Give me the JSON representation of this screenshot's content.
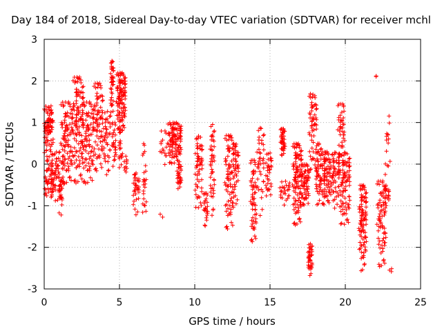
{
  "chart_data": {
    "type": "scatter",
    "title": "Day 184 of 2018, Sidereal Day-to-day VTEC variation (SDTVAR) for receiver mchl",
    "xlabel": "GPS time / hours",
    "ylabel": "SDTVAR / TECUs",
    "xlim": [
      0,
      25
    ],
    "ylim": [
      -3,
      3
    ],
    "xticks": [
      "0",
      "5",
      "10",
      "15",
      "20",
      "25"
    ],
    "yticks": [
      "-3",
      "-2",
      "-1",
      "0",
      "1",
      "2",
      "3"
    ],
    "grid": true,
    "marker": "plus",
    "series_color": "#ff0000",
    "clusters": [
      {
        "x": [
          0.0,
          0.6
        ],
        "y": [
          -0.8,
          1.4
        ],
        "n": 140
      },
      {
        "x": [
          0.5,
          1.3
        ],
        "y": [
          -0.9,
          0.3
        ],
        "n": 60
      },
      {
        "x": [
          0.9,
          1.2
        ],
        "y": [
          -1.3,
          -0.5
        ],
        "n": 15
      },
      {
        "x": [
          1.1,
          1.9
        ],
        "y": [
          -0.5,
          1.5
        ],
        "n": 100
      },
      {
        "x": [
          1.9,
          2.6
        ],
        "y": [
          -0.5,
          2.1
        ],
        "n": 120
      },
      {
        "x": [
          2.5,
          3.3
        ],
        "y": [
          -0.5,
          1.5
        ],
        "n": 90
      },
      {
        "x": [
          3.3,
          3.9
        ],
        "y": [
          -0.2,
          1.95
        ],
        "n": 80
      },
      {
        "x": [
          3.9,
          4.4
        ],
        "y": [
          -0.3,
          1.3
        ],
        "n": 40
      },
      {
        "x": [
          4.4,
          4.6
        ],
        "y": [
          1.2,
          2.5
        ],
        "n": 40
      },
      {
        "x": [
          4.5,
          4.8
        ],
        "y": [
          -0.1,
          1.0
        ],
        "n": 25
      },
      {
        "x": [
          4.8,
          5.4
        ],
        "y": [
          0.8,
          2.2
        ],
        "n": 110
      },
      {
        "x": [
          4.9,
          5.2
        ],
        "y": [
          -0.1,
          0.9
        ],
        "n": 20
      },
      {
        "x": [
          5.3,
          5.5
        ],
        "y": [
          -0.3,
          0.2
        ],
        "n": 10
      },
      {
        "x": [
          5.9,
          6.3
        ],
        "y": [
          -1.25,
          -0.2
        ],
        "n": 35
      },
      {
        "x": [
          6.5,
          6.8
        ],
        "y": [
          -1.2,
          0.0
        ],
        "n": 20
      },
      {
        "x": [
          6.5,
          6.7
        ],
        "y": [
          0.2,
          0.55
        ],
        "n": 5
      },
      {
        "x": [
          7.7,
          8.0
        ],
        "y": [
          -1.3,
          -1.2
        ],
        "n": 2
      },
      {
        "x": [
          7.7,
          8.2
        ],
        "y": [
          -0.2,
          0.8
        ],
        "n": 15
      },
      {
        "x": [
          8.2,
          9.1
        ],
        "y": [
          0.0,
          1.0
        ],
        "n": 110
      },
      {
        "x": [
          8.8,
          9.1
        ],
        "y": [
          -0.6,
          0.0
        ],
        "n": 30
      },
      {
        "x": [
          10.0,
          10.5
        ],
        "y": [
          -1.1,
          0.7
        ],
        "n": 60
      },
      {
        "x": [
          10.6,
          10.9
        ],
        "y": [
          -1.5,
          -0.7
        ],
        "n": 25
      },
      {
        "x": [
          11.0,
          11.3
        ],
        "y": [
          -1.3,
          1.0
        ],
        "n": 45
      },
      {
        "x": [
          12.0,
          12.6
        ],
        "y": [
          -1.6,
          0.7
        ],
        "n": 90
      },
      {
        "x": [
          12.6,
          12.9
        ],
        "y": [
          -1.0,
          0.5
        ],
        "n": 35
      },
      {
        "x": [
          13.7,
          14.1
        ],
        "y": [
          -1.9,
          0.1
        ],
        "n": 60
      },
      {
        "x": [
          14.1,
          14.6
        ],
        "y": [
          -1.3,
          0.9
        ],
        "n": 40
      },
      {
        "x": [
          14.7,
          15.1
        ],
        "y": [
          -0.8,
          0.3
        ],
        "n": 35
      },
      {
        "x": [
          15.7,
          16.0
        ],
        "y": [
          0.2,
          0.85
        ],
        "n": 40
      },
      {
        "x": [
          15.6,
          16.3
        ],
        "y": [
          -1.0,
          -0.4
        ],
        "n": 25
      },
      {
        "x": [
          16.5,
          17.1
        ],
        "y": [
          -1.5,
          0.5
        ],
        "n": 120
      },
      {
        "x": [
          17.1,
          17.6
        ],
        "y": [
          -1.0,
          0.0
        ],
        "n": 60
      },
      {
        "x": [
          17.5,
          17.8
        ],
        "y": [
          -2.7,
          -1.9
        ],
        "n": 40
      },
      {
        "x": [
          17.6,
          18.1
        ],
        "y": [
          -0.2,
          1.7
        ],
        "n": 60
      },
      {
        "x": [
          18.0,
          18.4
        ],
        "y": [
          -1.0,
          0.5
        ],
        "n": 50
      },
      {
        "x": [
          18.4,
          19.0
        ],
        "y": [
          -1.0,
          0.3
        ],
        "n": 80
      },
      {
        "x": [
          19.0,
          19.6
        ],
        "y": [
          -1.1,
          0.3
        ],
        "n": 60
      },
      {
        "x": [
          19.5,
          20.0
        ],
        "y": [
          0.2,
          1.45
        ],
        "n": 40
      },
      {
        "x": [
          19.6,
          20.3
        ],
        "y": [
          -1.5,
          0.3
        ],
        "n": 90
      },
      {
        "x": [
          20.9,
          21.4
        ],
        "y": [
          -2.6,
          -0.5
        ],
        "n": 100
      },
      {
        "x": [
          22.0,
          22.3
        ],
        "y": [
          2.1,
          2.2
        ],
        "n": 2
      },
      {
        "x": [
          22.1,
          22.7
        ],
        "y": [
          -2.5,
          -0.4
        ],
        "n": 70
      },
      {
        "x": [
          22.5,
          22.9
        ],
        "y": [
          -1.3,
          -0.5
        ],
        "n": 25
      },
      {
        "x": [
          22.6,
          23.0
        ],
        "y": [
          -0.3,
          1.2
        ],
        "n": 15
      },
      {
        "x": [
          22.8,
          23.1
        ],
        "y": [
          -2.6,
          -2.3
        ],
        "n": 3
      }
    ]
  }
}
